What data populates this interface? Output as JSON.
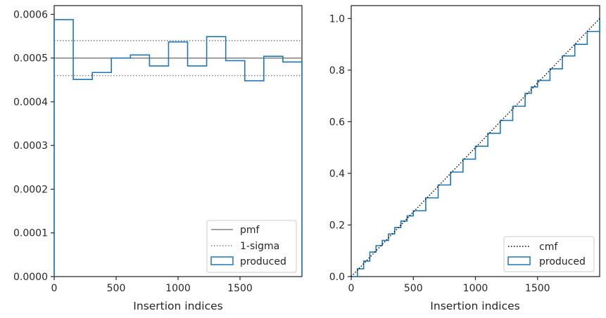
{
  "colors": {
    "produced": "#1f77b4",
    "pmf": "#808080",
    "sigma": "#808080",
    "cmf": "#000000",
    "axes": "#262626"
  },
  "chart_data": [
    {
      "type": "histogram",
      "xlabel": "Insertion indices",
      "ylabel": "",
      "xlim": [
        0,
        2000
      ],
      "ylim": [
        0,
        0.00062
      ],
      "xticks": [
        0,
        500,
        1000,
        1500
      ],
      "xtick_labels": [
        "0",
        "500",
        "1000",
        "1500"
      ],
      "yticks": [
        0,
        0.0001,
        0.0002,
        0.0003,
        0.0004,
        0.0005,
        0.0006
      ],
      "ytick_labels": [
        "0.0000",
        "0.0001",
        "0.0002",
        "0.0003",
        "0.0004",
        "0.0005",
        "0.0006"
      ],
      "bin_edges": [
        0,
        153.8,
        307.7,
        461.5,
        615.4,
        769.2,
        923.1,
        1076.9,
        1230.8,
        1384.6,
        1538.5,
        1692.3,
        1846.2,
        2000
      ],
      "series": [
        {
          "name": "produced",
          "style": "step",
          "values": [
            0.000588,
            0.000451,
            0.000467,
            0.0005,
            0.000507,
            0.000482,
            0.000537,
            0.000482,
            0.000549,
            0.000494,
            0.000448,
            0.000504,
            0.000491
          ]
        }
      ],
      "hlines": [
        {
          "name": "pmf",
          "y": 0.0005,
          "style": "solid"
        },
        {
          "name": "1-sigma",
          "y": 0.00054,
          "style": "dotted"
        },
        {
          "y": 0.00046,
          "style": "dotted"
        }
      ],
      "legend": {
        "position": "lower right",
        "entries": [
          {
            "label": "pmf",
            "kind": "line",
            "style": "solid",
            "color_key": "pmf"
          },
          {
            "label": "1-sigma",
            "kind": "line",
            "style": "dotted",
            "color_key": "sigma"
          },
          {
            "label": "produced",
            "kind": "patch",
            "color_key": "produced"
          }
        ]
      }
    },
    {
      "type": "line",
      "xlabel": "Insertion indices",
      "ylabel": "",
      "xlim": [
        0,
        2000
      ],
      "ylim": [
        0,
        1.05
      ],
      "xticks": [
        0,
        500,
        1000,
        1500
      ],
      "xtick_labels": [
        "0",
        "500",
        "1000",
        "1500"
      ],
      "yticks": [
        0,
        0.2,
        0.4,
        0.6,
        0.8,
        1.0
      ],
      "ytick_labels": [
        "0.0",
        "0.2",
        "0.4",
        "0.6",
        "0.8",
        "1.0"
      ],
      "series": [
        {
          "name": "cmf",
          "style": "dotted",
          "x": [
            0,
            2000
          ],
          "y": [
            0,
            1.0
          ]
        },
        {
          "name": "produced",
          "style": "step",
          "x": [
            0,
            50,
            100,
            150,
            200,
            250,
            300,
            350,
            400,
            450,
            500,
            600,
            700,
            800,
            900,
            1000,
            1100,
            1200,
            1300,
            1400,
            1450,
            1500,
            1600,
            1700,
            1800,
            1900,
            2000
          ],
          "y": [
            0,
            0.03,
            0.06,
            0.095,
            0.12,
            0.14,
            0.165,
            0.19,
            0.215,
            0.235,
            0.255,
            0.305,
            0.355,
            0.405,
            0.455,
            0.505,
            0.555,
            0.605,
            0.66,
            0.71,
            0.735,
            0.76,
            0.805,
            0.855,
            0.9,
            0.95,
            1.0
          ]
        }
      ],
      "legend": {
        "position": "lower right",
        "entries": [
          {
            "label": "cmf",
            "kind": "line",
            "style": "dotted",
            "color_key": "cmf"
          },
          {
            "label": "produced",
            "kind": "patch",
            "color_key": "produced"
          }
        ]
      }
    }
  ]
}
